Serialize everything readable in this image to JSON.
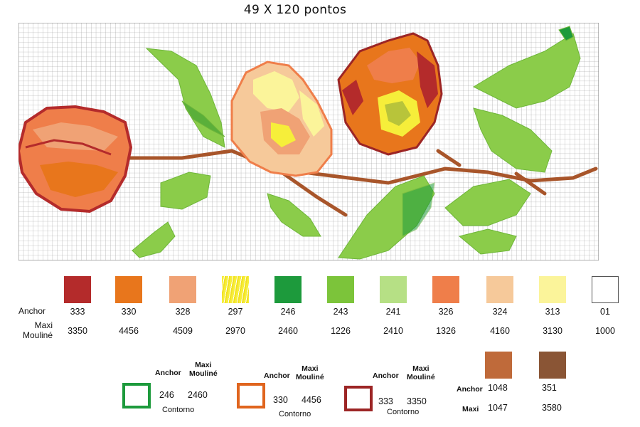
{
  "title": "49 X 120 pontos",
  "legend": {
    "anchor_label": "Anchor",
    "maxi_label": "Maxi\nMouliné",
    "threads": [
      {
        "color": "#b42b2b",
        "anchor": "333",
        "maxi": "3350"
      },
      {
        "color": "#e8761c",
        "anchor": "330",
        "maxi": "4456"
      },
      {
        "color": "#f0a275",
        "anchor": "328",
        "maxi": "4509"
      },
      {
        "color": "#f6ee3a",
        "anchor": "297",
        "maxi": "2970"
      },
      {
        "color": "#1d9a3c",
        "anchor": "246",
        "maxi": "2460"
      },
      {
        "color": "#7cc43a",
        "anchor": "243",
        "maxi": "1226"
      },
      {
        "color": "#b6e085",
        "anchor": "241",
        "maxi": "2410"
      },
      {
        "color": "#ef7e4a",
        "anchor": "326",
        "maxi": "1326"
      },
      {
        "color": "#f6c99a",
        "anchor": "324",
        "maxi": "4160"
      },
      {
        "color": "#fbf49a",
        "anchor": "313",
        "maxi": "3130"
      },
      {
        "color": "#ffffff",
        "anchor": "01",
        "maxi": "1000"
      }
    ]
  },
  "contours": [
    {
      "color": "#1d9a3c",
      "anchor_label": "Anchor",
      "maxi_label": "Maxi\nMouliné",
      "anchor": "246",
      "maxi": "2460",
      "caption": "Contorno"
    },
    {
      "color": "#e0651e",
      "anchor_label": "Anchor",
      "maxi_label": "Maxi\nMouliné",
      "anchor": "330",
      "maxi": "4456",
      "caption": "Contorno"
    },
    {
      "color": "#9c2525",
      "anchor_label": "Anchor",
      "maxi_label": "Maxi\nMouliné",
      "anchor": "333",
      "maxi": "3350",
      "caption": "Contorno"
    }
  ],
  "backstitch": {
    "anchor_label": "Anchor",
    "maxi_label": "Maxi",
    "threads": [
      {
        "color": "#bf6a3a",
        "anchor": "1048",
        "maxi": "1047"
      },
      {
        "color": "#8a5535",
        "anchor": "351",
        "maxi": "3580"
      }
    ]
  }
}
